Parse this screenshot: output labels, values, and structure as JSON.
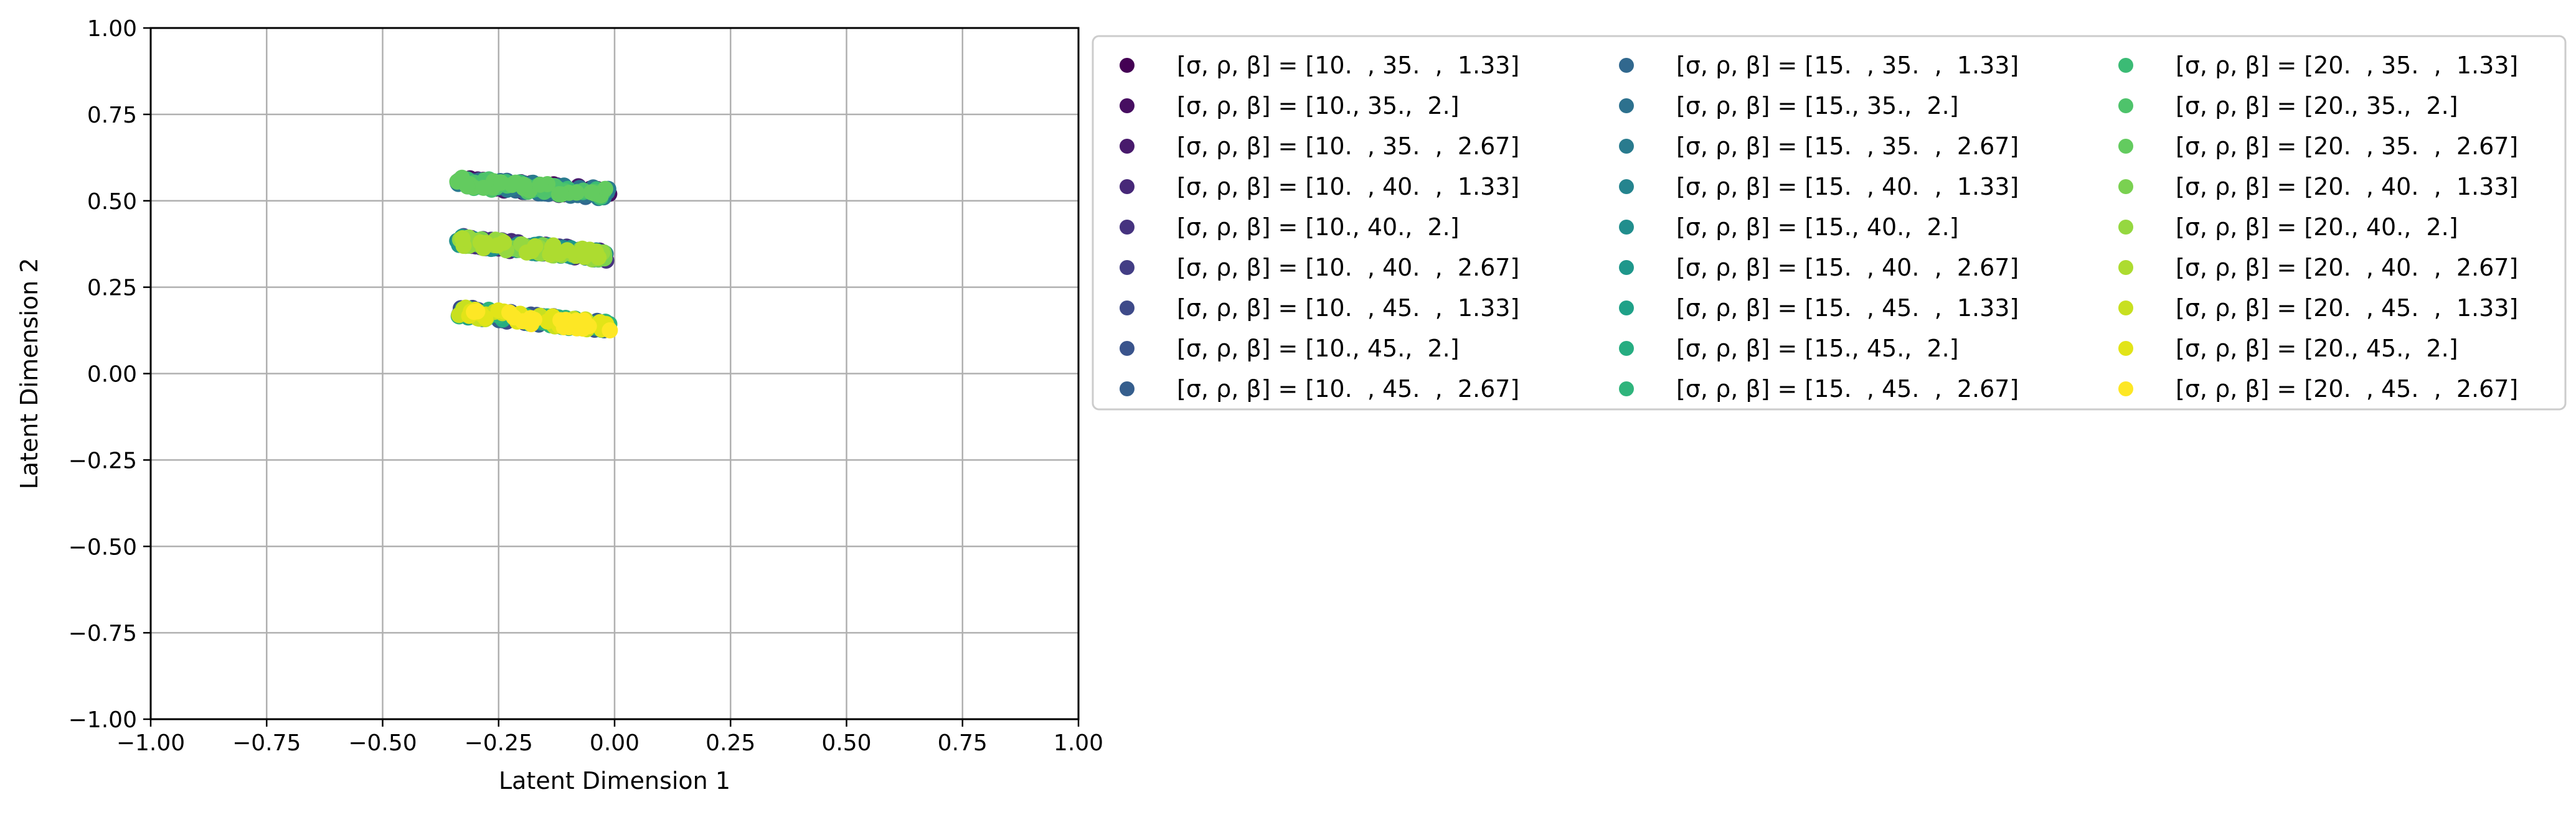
{
  "chart_data": {
    "type": "scatter",
    "title": "",
    "xlabel": "Latent Dimension 1",
    "ylabel": "Latent Dimension 2",
    "xlim": [
      -1.0,
      1.0
    ],
    "ylim": [
      -1.0,
      1.0
    ],
    "xticks": [
      -1.0,
      -0.75,
      -0.5,
      -0.25,
      0.0,
      0.25,
      0.5,
      0.75,
      1.0
    ],
    "yticks": [
      -1.0,
      -0.75,
      -0.5,
      -0.25,
      0.0,
      0.25,
      0.5,
      0.75,
      1.0
    ],
    "xtick_labels": [
      "−1.00",
      "−0.75",
      "−0.50",
      "−0.25",
      "0.00",
      "0.25",
      "0.50",
      "0.75",
      "1.00"
    ],
    "ytick_labels": [
      "−1.00",
      "−0.75",
      "−0.50",
      "−0.25",
      "0.00",
      "0.25",
      "0.50",
      "0.75",
      "1.00"
    ],
    "grid": true,
    "legend_placement": "outside-right",
    "legend_columns": 3,
    "series": [
      {
        "name": "[σ, ρ, β] = [10.  , 35.  ,  1.33]",
        "color": "#440154",
        "sigma": 10,
        "rho": 35,
        "beta": 1.33
      },
      {
        "name": "[σ, ρ, β] = [10., 35.,  2.]",
        "color": "#470e61",
        "sigma": 10,
        "rho": 35,
        "beta": 2.0
      },
      {
        "name": "[σ, ρ, β] = [10.  , 35.  ,  2.67]",
        "color": "#481a6c",
        "sigma": 10,
        "rho": 35,
        "beta": 2.67
      },
      {
        "name": "[σ, ρ, β] = [10.  , 40.  ,  1.33]",
        "color": "#472878",
        "sigma": 10,
        "rho": 40,
        "beta": 1.33
      },
      {
        "name": "[σ, ρ, β] = [10., 40.,  2.]",
        "color": "#46337f",
        "sigma": 10,
        "rho": 40,
        "beta": 2.0
      },
      {
        "name": "[σ, ρ, β] = [10.  , 40.  ,  2.67]",
        "color": "#433e85",
        "sigma": 10,
        "rho": 40,
        "beta": 2.67
      },
      {
        "name": "[σ, ρ, β] = [10.  , 45.  ,  1.33]",
        "color": "#3e4a89",
        "sigma": 10,
        "rho": 45,
        "beta": 1.33
      },
      {
        "name": "[σ, ρ, β] = [10., 45.,  2.]",
        "color": "#3a548c",
        "sigma": 10,
        "rho": 45,
        "beta": 2.0
      },
      {
        "name": "[σ, ρ, β] = [10.  , 45.  ,  2.67]",
        "color": "#355e8d",
        "sigma": 10,
        "rho": 45,
        "beta": 2.67
      },
      {
        "name": "[σ, ρ, β] = [15.  , 35.  ,  1.33]",
        "color": "#31688e",
        "sigma": 15,
        "rho": 35,
        "beta": 1.33
      },
      {
        "name": "[σ, ρ, β] = [15., 35.,  2.]",
        "color": "#2d718e",
        "sigma": 15,
        "rho": 35,
        "beta": 2.0
      },
      {
        "name": "[σ, ρ, β] = [15.  , 35.  ,  2.67]",
        "color": "#297b8e",
        "sigma": 15,
        "rho": 35,
        "beta": 2.67
      },
      {
        "name": "[σ, ρ, β] = [15.  , 40.  ,  1.33]",
        "color": "#25848e",
        "sigma": 15,
        "rho": 40,
        "beta": 1.33
      },
      {
        "name": "[σ, ρ, β] = [15., 40.,  2.]",
        "color": "#218e8d",
        "sigma": 15,
        "rho": 40,
        "beta": 2.0
      },
      {
        "name": "[σ, ρ, β] = [15.  , 40.  ,  2.67]",
        "color": "#1f978b",
        "sigma": 15,
        "rho": 40,
        "beta": 2.67
      },
      {
        "name": "[σ, ρ, β] = [15.  , 45.  ,  1.33]",
        "color": "#1fa188",
        "sigma": 15,
        "rho": 45,
        "beta": 1.33
      },
      {
        "name": "[σ, ρ, β] = [15., 45.,  2.]",
        "color": "#26ad81",
        "sigma": 15,
        "rho": 45,
        "beta": 2.0
      },
      {
        "name": "[σ, ρ, β] = [15.  , 45.  ,  2.67]",
        "color": "#2fb47c",
        "sigma": 15,
        "rho": 45,
        "beta": 2.67
      },
      {
        "name": "[σ, ρ, β] = [20.  , 35.  ,  1.33]",
        "color": "#3bbb75",
        "sigma": 20,
        "rho": 35,
        "beta": 1.33
      },
      {
        "name": "[σ, ρ, β] = [20., 35.,  2.]",
        "color": "#4ec36b",
        "sigma": 20,
        "rho": 35,
        "beta": 2.0
      },
      {
        "name": "[σ, ρ, β] = [20.  , 35.  ,  2.67]",
        "color": "#63cb5f",
        "sigma": 20,
        "rho": 35,
        "beta": 2.67
      },
      {
        "name": "[σ, ρ, β] = [20.  , 40.  ,  1.33]",
        "color": "#7ad151",
        "sigma": 20,
        "rho": 40,
        "beta": 1.33
      },
      {
        "name": "[σ, ρ, β] = [20., 40.,  2.]",
        "color": "#95d840",
        "sigma": 20,
        "rho": 40,
        "beta": 2.0
      },
      {
        "name": "[σ, ρ, β] = [20.  , 40.  ,  2.67]",
        "color": "#addc30",
        "sigma": 20,
        "rho": 40,
        "beta": 2.67
      },
      {
        "name": "[σ, ρ, β] = [20.  , 45.  ,  1.33]",
        "color": "#c8e020",
        "sigma": 20,
        "rho": 45,
        "beta": 1.33
      },
      {
        "name": "[σ, ρ, β] = [20., 45.,  2.]",
        "color": "#e2e418",
        "sigma": 20,
        "rho": 45,
        "beta": 2.0
      },
      {
        "name": "[σ, ρ, β] = [20.  , 45.  ,  2.67]",
        "color": "#fde725",
        "sigma": 20,
        "rho": 45,
        "beta": 2.67
      }
    ],
    "clusters": [
      {
        "rho": 35,
        "x_range": [
          -0.34,
          -0.01
        ],
        "y_range": [
          0.555,
          0.52
        ]
      },
      {
        "rho": 40,
        "x_range": [
          -0.34,
          -0.01
        ],
        "y_range": [
          0.385,
          0.34
        ]
      },
      {
        "rho": 45,
        "x_range": [
          -0.34,
          -0.01
        ],
        "y_range": [
          0.18,
          0.135
        ]
      }
    ]
  }
}
